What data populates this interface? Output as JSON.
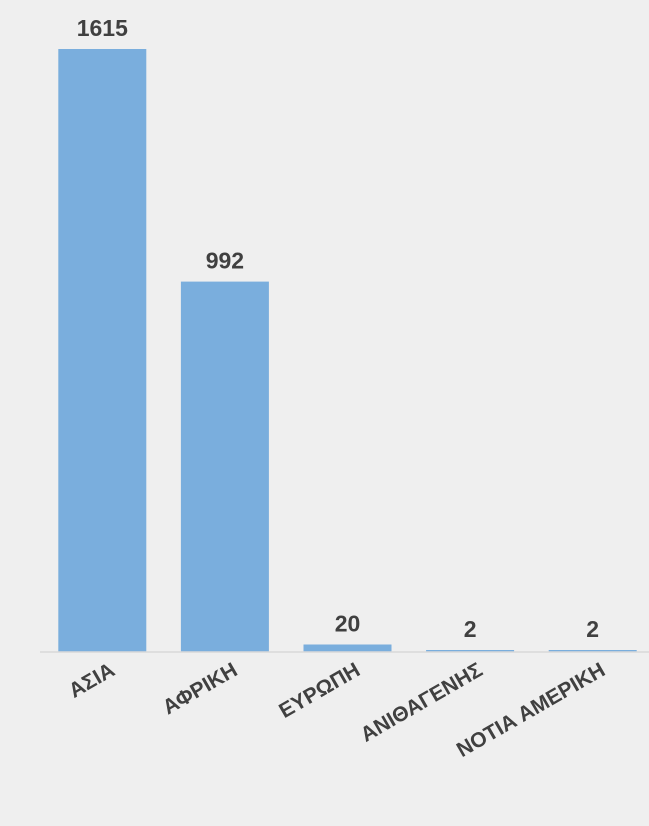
{
  "chart_data": {
    "type": "bar",
    "title": "",
    "xlabel": "",
    "ylabel": "",
    "categories": [
      "ΑΣΙΑ",
      "ΑΦΡΙΚΗ",
      "ΕΥΡΩΠΗ",
      "ΑΝΙΘΑΓΕΝΗΣ",
      "ΝΟΤΙΑ ΑΜΕΡΙΚΗ"
    ],
    "values": [
      1615,
      992,
      20,
      2,
      2
    ],
    "ylim": [
      0,
      1615
    ],
    "grid": false,
    "legend": "none",
    "data_labels": true,
    "colors": {
      "bar": "#7aaedd",
      "axis": "#d9d9d9",
      "label_text": "#404040",
      "background": "#efefef"
    }
  }
}
